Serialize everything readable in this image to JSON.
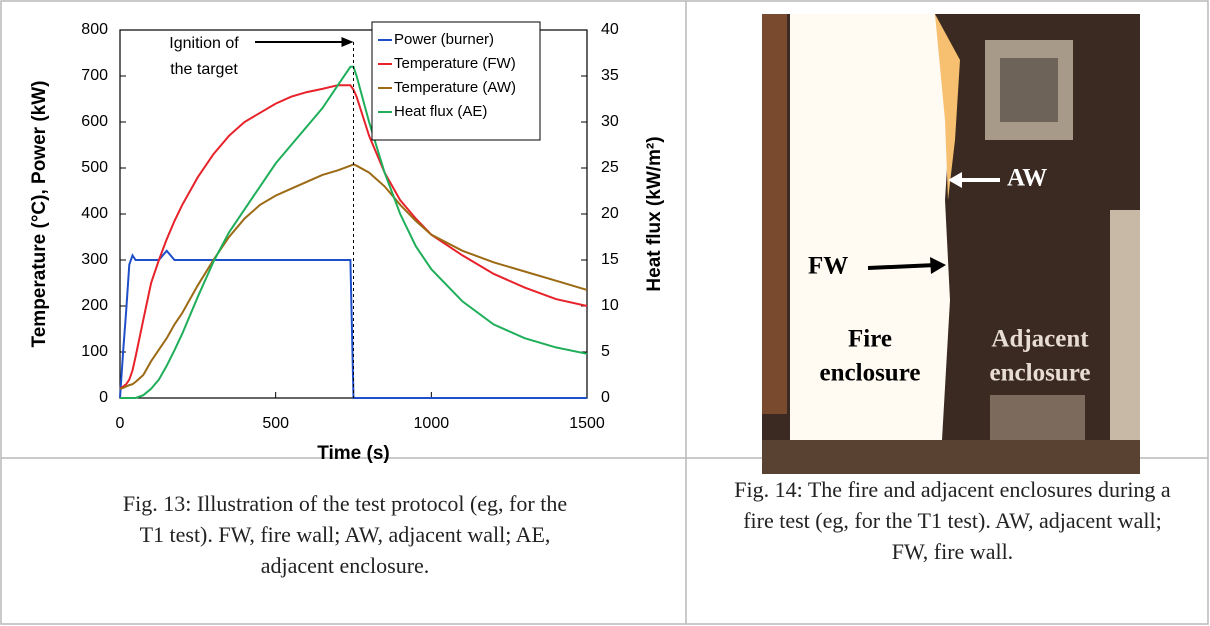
{
  "chart_data": {
    "type": "line",
    "x_label": "Time (s)",
    "y_label": "Temperature (°C), Power (kW)",
    "y2_label": "Heat flux (kW/m²)",
    "x": [
      0,
      10,
      20,
      30,
      40,
      50,
      75,
      100,
      125,
      150,
      175,
      200,
      250,
      300,
      350,
      400,
      450,
      500,
      550,
      600,
      650,
      700,
      740,
      750,
      760,
      800,
      850,
      900,
      950,
      1000,
      1100,
      1200,
      1300,
      1400,
      1500
    ],
    "series": [
      {
        "name": "Power (burner)",
        "color": "#1f4fc8",
        "values": [
          0,
          100,
          190,
          290,
          310,
          300,
          300,
          300,
          300,
          320,
          300,
          300,
          300,
          300,
          300,
          300,
          300,
          300,
          300,
          300,
          300,
          300,
          300,
          0,
          0,
          0,
          0,
          0,
          0,
          0,
          0,
          0,
          0,
          0,
          0
        ]
      },
      {
        "name": "Temperature (FW)",
        "color": "#e8222a",
        "values": [
          20,
          25,
          30,
          40,
          60,
          90,
          170,
          250,
          300,
          345,
          385,
          420,
          480,
          530,
          570,
          600,
          620,
          640,
          655,
          665,
          672,
          680,
          680,
          670,
          655,
          570,
          490,
          430,
          390,
          355,
          310,
          270,
          240,
          215,
          200
        ]
      },
      {
        "name": "Temperature (AW)",
        "color": "#9c6a14",
        "values": [
          20,
          22,
          25,
          28,
          30,
          35,
          50,
          80,
          105,
          130,
          160,
          185,
          245,
          300,
          350,
          390,
          420,
          440,
          455,
          470,
          485,
          495,
          505,
          508,
          505,
          490,
          460,
          420,
          385,
          355,
          320,
          295,
          275,
          255,
          235
        ]
      },
      {
        "name": "Heat flux (AE)",
        "color": "#1fae5a",
        "axis": "y2",
        "values": [
          0,
          0,
          0,
          0,
          0,
          0,
          0.3,
          1,
          2,
          3.5,
          5.2,
          7,
          11,
          14.8,
          18,
          20.5,
          23,
          25.5,
          27.5,
          29.5,
          31.5,
          34,
          36,
          36,
          35,
          30,
          24.5,
          20,
          16.5,
          14,
          10.5,
          8,
          6.5,
          5.5,
          4.8
        ]
      }
    ],
    "xlim": [
      0,
      1500
    ],
    "xticks": [
      0,
      500,
      1000,
      1500
    ],
    "ylim": [
      0,
      800
    ],
    "yticks": [
      0,
      100,
      200,
      300,
      400,
      500,
      600,
      700,
      800
    ],
    "y2lim": [
      0,
      40
    ],
    "y2ticks": [
      0,
      5,
      10,
      15,
      20,
      25,
      30,
      35,
      40
    ],
    "grid": false,
    "legend": "top-right",
    "annotation": {
      "lines": [
        "Ignition of",
        "the target"
      ],
      "x": 750
    }
  },
  "photo": {
    "labels": {
      "aw": "AW",
      "fw": "FW",
      "fire": [
        "Fire",
        "enclosure"
      ],
      "adjacent": [
        "Adjacent",
        "enclosure"
      ]
    }
  },
  "captions": [
    "Fig. 13: Illustration of the test protocol (eg, for the T1 test). FW, fire wall; AW, adjacent wall; AE, adjacent enclosure.",
    "Fig. 14: The fire and adjacent enclosures during a fire test (eg, for the T1 test). AW, adjacent wall; FW, fire wall."
  ]
}
